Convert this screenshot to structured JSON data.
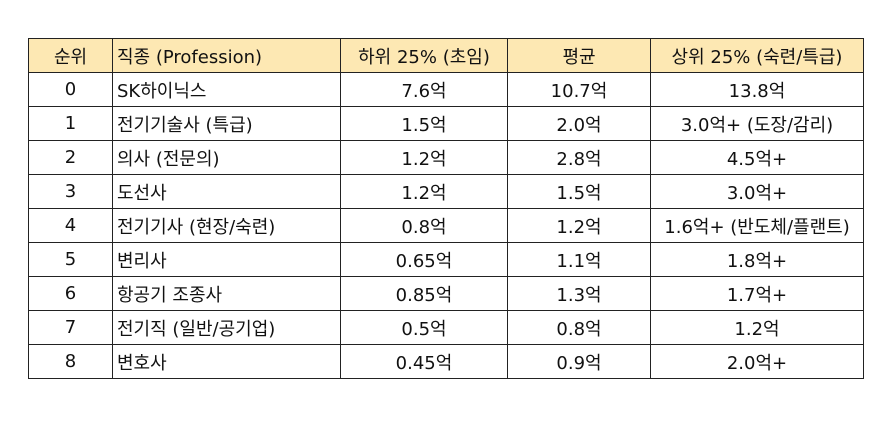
{
  "table": {
    "header": [
      "순위",
      "직종 (Profession)",
      "하위 25% (초임)",
      "평균",
      "상위 25% (숙련/특급)"
    ],
    "rows": [
      [
        "0",
        "SK하이닉스",
        "7.6억",
        "10.7억",
        "13.8억"
      ],
      [
        "1",
        "전기기술사 (특급)",
        "1.5억",
        "2.0억",
        "3.0억+ (도장/감리)"
      ],
      [
        "2",
        "의사 (전문의)",
        "1.2억",
        "2.8억",
        "4.5억+"
      ],
      [
        "3",
        "도선사",
        "1.2억",
        "1.5억",
        "3.0억+"
      ],
      [
        "4",
        "전기기사 (현장/숙련)",
        "0.8억",
        "1.2억",
        "1.6억+ (반도체/플랜트)"
      ],
      [
        "5",
        "변리사",
        "0.65억",
        "1.1억",
        "1.8억+"
      ],
      [
        "6",
        "항공기 조종사",
        "0.85억",
        "1.3억",
        "1.7억+"
      ],
      [
        "7",
        "전기직 (일반/공기업)",
        "0.5억",
        "0.8억",
        "1.2억"
      ],
      [
        "8",
        "변호사",
        "0.45억",
        "0.9억",
        "2.0억+"
      ]
    ]
  }
}
